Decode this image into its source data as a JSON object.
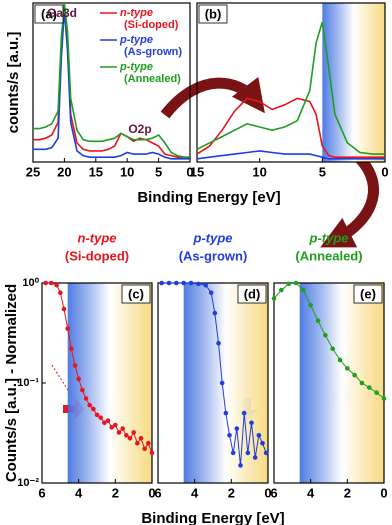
{
  "chart_data": [
    {
      "type": "line",
      "panel_label": "(a)",
      "ylabel": "counts/s [a.u.]",
      "xlabel": "Binding Energy [eV]",
      "xlim": [
        25,
        0
      ],
      "xticks": [
        25,
        20,
        15,
        10,
        5,
        0
      ],
      "ylim": [
        0,
        100
      ],
      "legend": "upper right",
      "x": [
        25,
        24,
        23,
        22,
        21,
        20.5,
        20,
        19.5,
        19,
        18,
        17,
        16,
        15,
        14,
        13,
        12,
        11,
        10,
        9,
        8,
        7,
        6,
        5,
        4,
        3,
        2,
        1,
        0
      ],
      "series": [
        {
          "name": "n-type (Si-doped)",
          "color": "#e8141e",
          "values": [
            14,
            14,
            15,
            17,
            25,
            70,
            98,
            75,
            30,
            12,
            8,
            7,
            7,
            7,
            8,
            10,
            18,
            16,
            13,
            15,
            14,
            12,
            10,
            5,
            4,
            3,
            3,
            3
          ]
        },
        {
          "name": "p-type (As-grown)",
          "color": "#1f3de0",
          "values": [
            8,
            8,
            8,
            9,
            15,
            65,
            96,
            70,
            25,
            7,
            4,
            3,
            3,
            3,
            3,
            3,
            4,
            6,
            5,
            5,
            5,
            6,
            5,
            3,
            2,
            2,
            2,
            2
          ]
        },
        {
          "name": "p-type (Annealed)",
          "color": "#1f9e1f",
          "values": [
            21,
            21,
            22,
            24,
            32,
            78,
            100,
            82,
            40,
            20,
            14,
            13,
            13,
            13,
            14,
            15,
            18,
            16,
            14,
            14,
            14,
            15,
            17,
            12,
            6,
            4,
            3,
            3
          ]
        }
      ],
      "annotations": [
        {
          "text": "Ga3d",
          "color": "#5a1840"
        },
        {
          "text": "O2p",
          "color": "#6a1838"
        }
      ]
    },
    {
      "type": "line",
      "panel_label": "(b)",
      "xlim": [
        15,
        0
      ],
      "xticks": [
        15,
        10,
        5,
        0
      ],
      "ylim": [
        0,
        100
      ],
      "shade": {
        "xlim": [
          5,
          0
        ],
        "colors": [
          "#3d6ee0",
          "#ffffff",
          "#f6d675"
        ]
      },
      "x": [
        15,
        14,
        13,
        12,
        11,
        10,
        9,
        8,
        7,
        6,
        5.5,
        5,
        4.5,
        4,
        3,
        2,
        1,
        0
      ],
      "series": [
        {
          "color": "#e8141e",
          "values": [
            5,
            10,
            20,
            32,
            40,
            38,
            33,
            36,
            40,
            38,
            30,
            10,
            4,
            3,
            3,
            3,
            3,
            3
          ]
        },
        {
          "color": "#1f3de0",
          "values": [
            2,
            3,
            4,
            5,
            6,
            7,
            6,
            5,
            5,
            5,
            4,
            3,
            2,
            2,
            2,
            2,
            2,
            2
          ]
        },
        {
          "color": "#1f9e1f",
          "values": [
            8,
            12,
            16,
            20,
            24,
            22,
            20,
            22,
            26,
            45,
            75,
            88,
            60,
            30,
            12,
            6,
            5,
            5
          ]
        }
      ]
    },
    {
      "type": "scatter-line",
      "panel_label": "(c)",
      "title": [
        "n-type",
        "(Si-doped)"
      ],
      "ylabel": "Counts/s [a.u.] - Normalized",
      "xlim": [
        6,
        0
      ],
      "xticks": [
        6,
        4,
        2,
        0
      ],
      "ylim": [
        0.01,
        1
      ],
      "log_y": true,
      "yticks": [
        {
          "value": 0.01,
          "label": "10⁻²"
        },
        {
          "value": 0.1,
          "label": "10⁻¹"
        },
        {
          "value": 1,
          "label": "10⁰"
        }
      ],
      "shade": {
        "xlim": [
          4.6,
          0
        ],
        "colors": [
          "#3d6ee0",
          "#ffffff",
          "#f6d675"
        ]
      },
      "x": [
        5.8,
        5.5,
        5.2,
        5,
        4.8,
        4.6,
        4.4,
        4.2,
        4,
        3.8,
        3.6,
        3.4,
        3.2,
        3,
        2.8,
        2.6,
        2.4,
        2.2,
        2,
        1.8,
        1.6,
        1.4,
        1.2,
        1,
        0.8,
        0.6,
        0.4,
        0.2,
        0
      ],
      "series": [
        {
          "color": "#e8141e",
          "values": [
            1,
            1,
            0.95,
            0.8,
            0.55,
            0.35,
            0.22,
            0.15,
            0.11,
            0.085,
            0.07,
            0.06,
            0.055,
            0.048,
            0.045,
            0.04,
            0.042,
            0.036,
            0.038,
            0.032,
            0.035,
            0.03,
            0.028,
            0.032,
            0.025,
            0.028,
            0.022,
            0.025,
            0.02
          ]
        }
      ]
    },
    {
      "type": "scatter-line",
      "panel_label": "(d)",
      "title": [
        "p-type",
        "(As-grown)"
      ],
      "xlabel": "Binding Energy [eV]",
      "xlim": [
        6,
        0
      ],
      "xticks": [
        6,
        4,
        2,
        0
      ],
      "ylim": [
        0.01,
        1
      ],
      "log_y": true,
      "shade": {
        "xlim": [
          4.6,
          0
        ],
        "colors": [
          "#3d6ee0",
          "#ffffff",
          "#f6d675"
        ]
      },
      "x": [
        5.8,
        5.4,
        5,
        4.6,
        4.2,
        3.8,
        3.4,
        3.1,
        2.9,
        2.7,
        2.5,
        2.3,
        2.1,
        1.9,
        1.7,
        1.5,
        1.3,
        1.1,
        0.9,
        0.7,
        0.5,
        0.3,
        0.1
      ],
      "series": [
        {
          "color": "#1f3de0",
          "values": [
            1,
            1,
            1,
            1,
            1,
            0.98,
            0.95,
            0.8,
            0.5,
            0.25,
            0.1,
            0.05,
            0.03,
            0.02,
            0.035,
            0.015,
            0.05,
            0.02,
            0.04,
            0.018,
            0.03,
            0.025,
            0.02
          ]
        }
      ]
    },
    {
      "type": "scatter-line",
      "panel_label": "(e)",
      "title": [
        "p-type",
        "(Annealed)"
      ],
      "xlim": [
        6,
        0
      ],
      "xticks": [
        6,
        4,
        2,
        0
      ],
      "ylim": [
        0.01,
        1
      ],
      "log_y": true,
      "shade": {
        "xlim": [
          4.6,
          0
        ],
        "colors": [
          "#3d6ee0",
          "#ffffff",
          "#f6d675"
        ]
      },
      "x": [
        6,
        5.6,
        5.2,
        4.8,
        4.4,
        4,
        3.6,
        3.2,
        2.8,
        2.4,
        2,
        1.6,
        1.2,
        0.8,
        0.4,
        0
      ],
      "series": [
        {
          "color": "#1f9e1f",
          "values": [
            0.7,
            0.85,
            0.98,
            1,
            0.85,
            0.6,
            0.42,
            0.3,
            0.22,
            0.17,
            0.14,
            0.12,
            0.1,
            0.09,
            0.08,
            0.07
          ]
        }
      ]
    }
  ]
}
